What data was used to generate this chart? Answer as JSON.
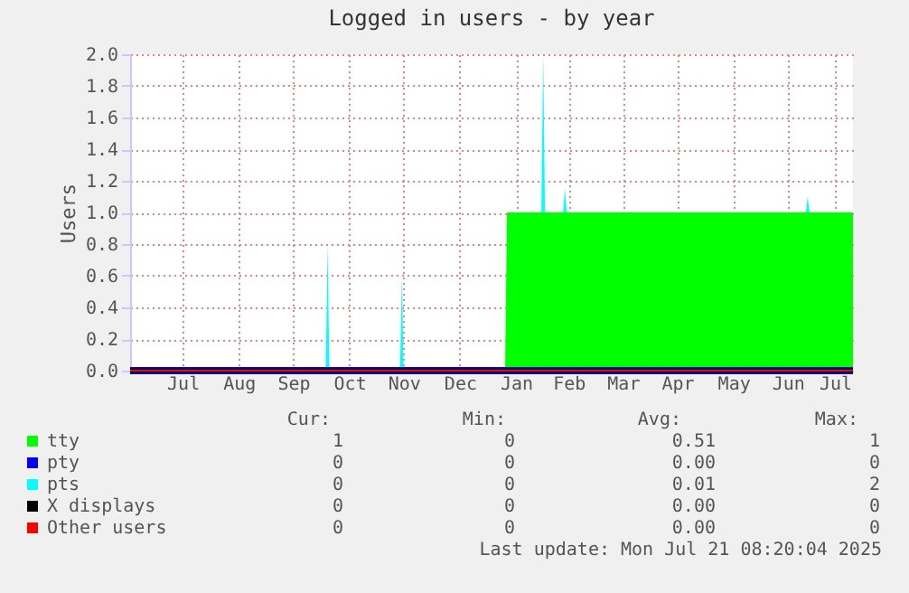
{
  "chart_data": {
    "type": "area",
    "stacked": true,
    "title": "Logged in users - by year",
    "ylabel": "Users",
    "x": [
      "2024-06-17",
      "2024-10-03",
      "2024-10-04",
      "2024-10-05",
      "2024-11-13",
      "2024-11-14",
      "2024-11-15",
      "2025-01-10",
      "2025-01-11",
      "2025-01-30",
      "2025-01-31",
      "2025-02-01",
      "2025-02-11",
      "2025-02-12",
      "2025-02-13",
      "2025-06-25",
      "2025-06-26",
      "2025-06-27",
      "2025-07-21"
    ],
    "series": [
      {
        "name": "tty",
        "color": "#00ff00",
        "values": [
          0,
          0,
          0,
          0,
          0,
          0,
          0,
          0,
          1,
          1,
          1,
          1,
          1,
          1,
          1,
          1,
          1,
          1,
          1
        ]
      },
      {
        "name": "pty",
        "type": "line",
        "color": "#0000ff",
        "values": [
          0,
          0,
          0,
          0,
          0,
          0,
          0,
          0,
          0,
          0,
          0,
          0,
          0,
          0,
          0,
          0,
          0,
          0,
          0
        ]
      },
      {
        "name": "pts",
        "color": "#00ffff",
        "values": [
          0,
          0,
          0.8,
          0,
          0,
          0.6,
          0,
          0,
          0,
          0,
          1.0,
          0,
          0,
          0.15,
          0,
          0,
          0.1,
          0,
          0
        ]
      },
      {
        "name": "X displays",
        "type": "line",
        "color": "#000000",
        "values": [
          0,
          0,
          0,
          0,
          0,
          0,
          0,
          0,
          0,
          0,
          0,
          0,
          0,
          0,
          0,
          0,
          0,
          0,
          0
        ]
      },
      {
        "name": "Other users",
        "type": "line",
        "color": "#ff0000",
        "values": [
          0,
          0,
          0,
          0,
          0,
          0,
          0,
          0,
          0,
          0,
          0,
          0,
          0,
          0,
          0,
          0,
          0,
          0,
          0
        ]
      }
    ],
    "xlim": [
      "2024-06-17",
      "2025-07-21"
    ],
    "xticks": [
      {
        "value": "2024-07-16",
        "label": "Jul"
      },
      {
        "value": "2024-08-16",
        "label": "Aug"
      },
      {
        "value": "2024-09-15",
        "label": "Sep"
      },
      {
        "value": "2024-10-16",
        "label": "Oct"
      },
      {
        "value": "2024-11-15",
        "label": "Nov"
      },
      {
        "value": "2024-12-16",
        "label": "Dec"
      },
      {
        "value": "2025-01-16",
        "label": "Jan"
      },
      {
        "value": "2025-02-14",
        "label": "Feb"
      },
      {
        "value": "2025-03-16",
        "label": "Mar"
      },
      {
        "value": "2025-04-15",
        "label": "Apr"
      },
      {
        "value": "2025-05-16",
        "label": "May"
      },
      {
        "value": "2025-06-15",
        "label": "Jun"
      },
      {
        "value": "2025-07-11",
        "label": "Jul"
      }
    ],
    "ylim": [
      0,
      2.0
    ],
    "yticks": [
      {
        "value": 0,
        "label": "0.0"
      },
      {
        "value": 0.2,
        "label": "0.2"
      },
      {
        "value": 0.4,
        "label": "0.4"
      },
      {
        "value": 0.6,
        "label": "0.6"
      },
      {
        "value": 0.8,
        "label": "0.8"
      },
      {
        "value": 1.0,
        "label": "1.0"
      },
      {
        "value": 1.2,
        "label": "1.2"
      },
      {
        "value": 1.4,
        "label": "1.4"
      },
      {
        "value": 1.6,
        "label": "1.6"
      },
      {
        "value": 1.8,
        "label": "1.8"
      },
      {
        "value": 2.0,
        "label": "2.0"
      }
    ],
    "grid": true,
    "legend": "bottom",
    "annotations": [
      "Cur:",
      "Min:",
      "Avg:",
      "Max:",
      "1",
      "0",
      "0.51",
      "1",
      "0",
      "0",
      "0.00",
      "0",
      "0",
      "0",
      "0.01",
      "2",
      "0",
      "0",
      "0.00",
      "0",
      "0",
      "0",
      "0.00",
      "0",
      "Last update: Mon Jul 21 08:20:04 2025"
    ]
  }
}
